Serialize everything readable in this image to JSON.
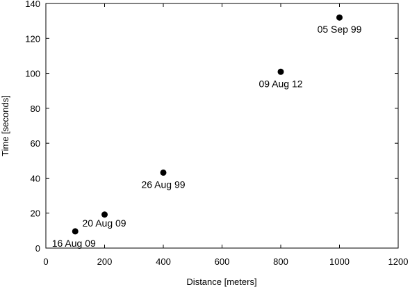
{
  "chart_data": {
    "type": "scatter",
    "xlabel": "Distance [meters]",
    "ylabel": "Time [seconds]",
    "xlim": [
      0,
      1200
    ],
    "ylim": [
      0,
      140
    ],
    "xticks": [
      0,
      200,
      400,
      600,
      800,
      1000,
      1200
    ],
    "yticks": [
      0,
      20,
      40,
      60,
      80,
      100,
      120,
      140
    ],
    "grid": false,
    "legend": "none",
    "marker_color": "#000000",
    "points": [
      {
        "x": 100,
        "y": 9.58,
        "label": "16 Aug 09"
      },
      {
        "x": 200,
        "y": 19.19,
        "label": "20 Aug 09"
      },
      {
        "x": 400,
        "y": 43.18,
        "label": "26 Aug 99"
      },
      {
        "x": 800,
        "y": 100.91,
        "label": "09 Aug 12"
      },
      {
        "x": 1000,
        "y": 131.96,
        "label": "05 Sep 99"
      }
    ]
  }
}
